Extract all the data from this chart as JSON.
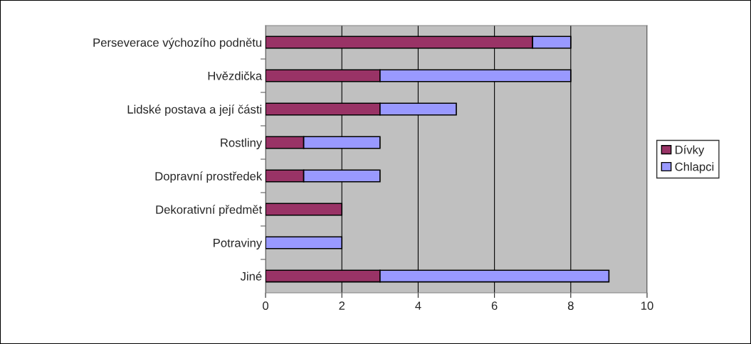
{
  "chart_data": {
    "type": "bar",
    "orientation": "horizontal",
    "stacked": true,
    "categories": [
      "Perseverace výchozího podnětu",
      "Hvězdička",
      "Lidské postava a její části",
      "Rostliny",
      "Dopravní prostředek",
      "Dekorativní předmět",
      "Potraviny",
      "Jiné"
    ],
    "series": [
      {
        "name": "Dívky",
        "color": "#993366",
        "values": [
          7,
          3,
          3,
          1,
          1,
          2,
          0,
          3
        ]
      },
      {
        "name": "Chlapci",
        "color": "#9999ff",
        "values": [
          1,
          5,
          2,
          2,
          2,
          0,
          2,
          6
        ]
      }
    ],
    "xlim": [
      0,
      10
    ],
    "xticks": [
      0,
      2,
      4,
      6,
      8,
      10
    ],
    "grid": "x",
    "legend": "right"
  }
}
